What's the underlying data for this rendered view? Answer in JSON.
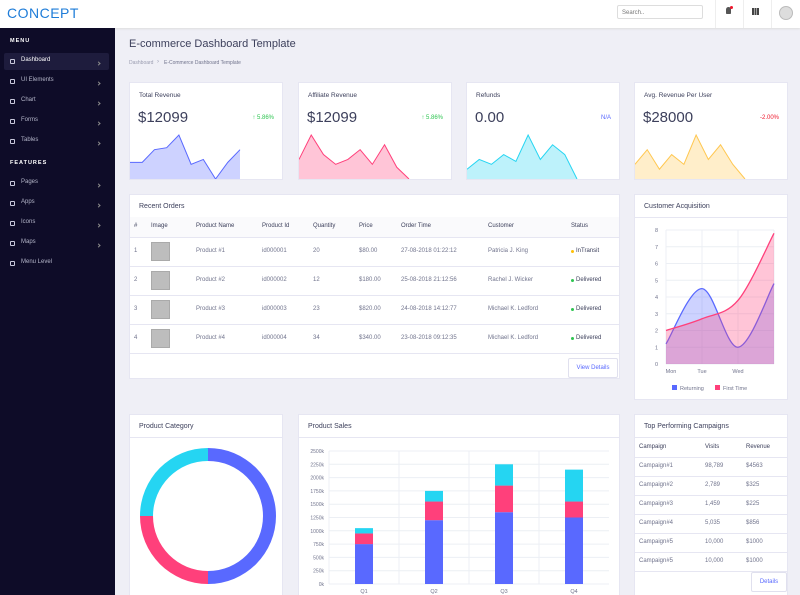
{
  "header": {
    "logo": "CONCEPT",
    "search_placeholder": "Search.."
  },
  "sidebar": {
    "menu_title": "MENU",
    "menu": [
      "Dashboard",
      "UI Elements",
      "Chart",
      "Forms",
      "Tables"
    ],
    "features_title": "FEATURES",
    "features": [
      "Pages",
      "Apps",
      "Icons",
      "Maps",
      "Menu Level"
    ]
  },
  "page": {
    "title": "E-commerce Dashboard Template",
    "breadcrumb": [
      "Dashboard",
      "E-Commerce Dashboard Template"
    ]
  },
  "metrics": [
    {
      "title": "Total Revenue",
      "value": "$12099",
      "change": "5.86%",
      "trend": "up"
    },
    {
      "title": "Affiliate Revenue",
      "value": "$12099",
      "change": "5.86%",
      "trend": "up"
    },
    {
      "title": "Refunds",
      "value": "0.00",
      "change": "N/A",
      "trend": "none"
    },
    {
      "title": "Avg. Revenue Per User",
      "value": "$28000",
      "change": "-2.00%",
      "trend": "down"
    }
  ],
  "orders": {
    "title": "Recent Orders",
    "columns": [
      "#",
      "Image",
      "Product Name",
      "Product Id",
      "Quantity",
      "Price",
      "Order Time",
      "Customer",
      "Status"
    ],
    "rows": [
      [
        "1",
        "Product #1",
        "id000001",
        "20",
        "$80.00",
        "27-08-2018 01:22:12",
        "Patricia J. King",
        "InTransit"
      ],
      [
        "2",
        "Product #2",
        "id000002",
        "12",
        "$180.00",
        "25-08-2018 21:12:56",
        "Rachel J. Wicker",
        "Delivered"
      ],
      [
        "3",
        "Product #3",
        "id000003",
        "23",
        "$820.00",
        "24-08-2018 14:12:77",
        "Michael K. Ledford",
        "Delivered"
      ],
      [
        "4",
        "Product #4",
        "id000004",
        "34",
        "$340.00",
        "23-08-2018 09:12:35",
        "Michael K. Ledford",
        "Delivered"
      ]
    ],
    "button": "View Details"
  },
  "campaigns": {
    "title": "Top Performing Campaigns",
    "columns": [
      "Campaign",
      "Visits",
      "Revenue"
    ],
    "rows": [
      [
        "Campaign#1",
        "98,789",
        "$4563"
      ],
      [
        "Campaign#2",
        "2,789",
        "$325"
      ],
      [
        "Campaign#3",
        "1,459",
        "$225"
      ],
      [
        "Campaign#4",
        "5,035",
        "$856"
      ],
      [
        "Campaign#5",
        "10,000",
        "$1000"
      ],
      [
        "Campaign#5",
        "10,000",
        "$1000"
      ]
    ],
    "button": "Details"
  },
  "chart_data": [
    {
      "type": "area",
      "color": "#5969ff",
      "values": [
        17,
        17,
        30,
        32,
        45,
        15,
        20,
        0,
        17,
        30
      ]
    },
    {
      "type": "area",
      "color": "#ff407b",
      "values": [
        20,
        45,
        25,
        15,
        20,
        30,
        15,
        35,
        12,
        0
      ]
    },
    {
      "type": "area",
      "color": "#25d5f2",
      "values": [
        10,
        20,
        15,
        25,
        18,
        45,
        20,
        35,
        25,
        0
      ]
    },
    {
      "type": "area",
      "color": "#ffc750",
      "values": [
        15,
        30,
        10,
        25,
        15,
        45,
        20,
        35,
        15,
        0
      ]
    },
    {
      "type": "smooth-area",
      "title": "Customer Acquisition",
      "categories": [
        "Mon",
        "Tue",
        "Wed",
        null
      ],
      "series": [
        {
          "name": "Returning",
          "color": "#5969ff",
          "values": [
            1.2,
            4.5,
            1.0,
            4.8
          ]
        },
        {
          "name": "First Time",
          "color": "#ff407b",
          "values": [
            2,
            2.7,
            3.8,
            7.8
          ]
        }
      ],
      "ylim": [
        0,
        8
      ],
      "yticks": [
        0,
        1,
        2,
        3,
        4,
        5,
        6,
        7,
        8
      ],
      "grid": true
    },
    {
      "type": "donut",
      "title": "Product Category",
      "values": [
        50,
        25,
        25
      ],
      "colors": [
        "#5969ff",
        "#ff407b",
        "#25d5f2"
      ]
    },
    {
      "type": "stacked-bar",
      "title": "Product Sales",
      "categories": [
        "Q1",
        "Q2",
        "Q3",
        "Q4"
      ],
      "series": [
        {
          "color": "#5969ff",
          "values": [
            750,
            1200,
            1350,
            1250
          ]
        },
        {
          "color": "#ff407b",
          "values": [
            200,
            350,
            500,
            300
          ]
        },
        {
          "color": "#25d5f2",
          "values": [
            100,
            200,
            400,
            600
          ]
        }
      ],
      "ylim": [
        0,
        2500
      ],
      "yticks": [
        {
          "value": 0,
          "label": "0k"
        },
        {
          "value": 250,
          "label": "250k"
        },
        {
          "value": 500,
          "label": "500k"
        },
        {
          "value": 750,
          "label": "750k"
        },
        {
          "value": 1000,
          "label": "1000k"
        },
        {
          "value": 1250,
          "label": "1250k"
        },
        {
          "value": 1500,
          "label": "1500k"
        },
        {
          "value": 1750,
          "label": "1750k"
        },
        {
          "value": 2000,
          "label": "2000k"
        },
        {
          "value": 2250,
          "label": "2250k"
        },
        {
          "value": 2500,
          "label": "2500k"
        }
      ],
      "grid": true
    }
  ]
}
